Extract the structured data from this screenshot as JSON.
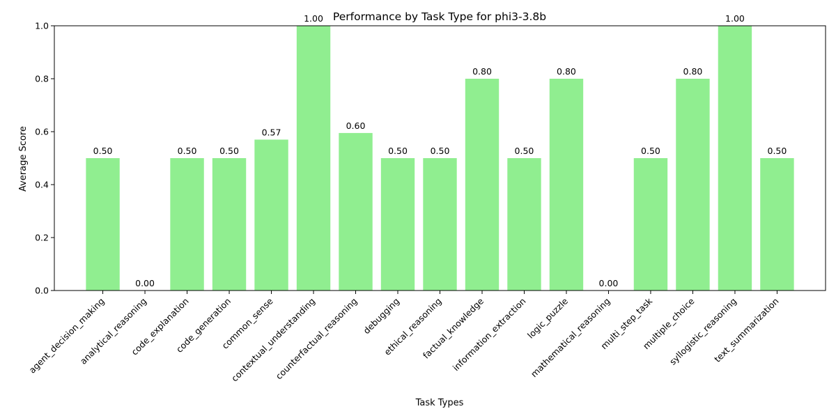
{
  "chart_data": {
    "type": "bar",
    "title": "Performance by Task Type for phi3-3.8b",
    "xlabel": "Task Types",
    "ylabel": "Average Score",
    "ylim": [
      0,
      1
    ],
    "yticks": [
      "0.0",
      "0.2",
      "0.4",
      "0.6",
      "0.8",
      "1.0"
    ],
    "grid": false,
    "bar_color": "#90ee90",
    "categories": [
      "agent_decision_making",
      "analytical_reasoning",
      "code_explanation",
      "code_generation",
      "common_sense",
      "contextual_understanding",
      "counterfactual_reasoning",
      "debugging",
      "ethical_reasoning",
      "factual_knowledge",
      "information_extraction",
      "logic_puzzle",
      "mathematical_reasoning",
      "multi_step_task",
      "multiple_choice",
      "syllogistic_reasoning",
      "text_summarization"
    ],
    "values": [
      0.5,
      0.0,
      0.5,
      0.5,
      0.57,
      1.0,
      0.595,
      0.5,
      0.5,
      0.8,
      0.5,
      0.8,
      0.0,
      0.5,
      0.8,
      1.0,
      0.5
    ],
    "value_labels": [
      "0.50",
      "0.00",
      "0.50",
      "0.50",
      "0.57",
      "1.00",
      "0.60",
      "0.50",
      "0.50",
      "0.80",
      "0.50",
      "0.80",
      "0.00",
      "0.50",
      "0.80",
      "1.00",
      "0.50"
    ]
  }
}
